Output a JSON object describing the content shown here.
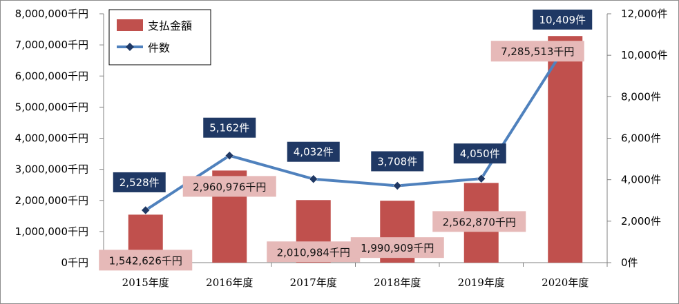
{
  "chart_data": {
    "type": "bar",
    "categories": [
      "2015年度",
      "2016年度",
      "2017年度",
      "2018年度",
      "2019年度",
      "2020年度"
    ],
    "series": [
      {
        "name": "支払金額",
        "kind": "bar",
        "axis": "left",
        "values": [
          1542626,
          2960976,
          2010984,
          1990909,
          2562870,
          7285513
        ],
        "labels": [
          "1,542,626千円",
          "2,960,976千円",
          "2,010,984千円",
          "1,990,909千円",
          "2,562,870千円",
          "7,285,513千円"
        ],
        "color": "#C0504D",
        "label_bg": "#E6B9B8"
      },
      {
        "name": "件数",
        "kind": "line",
        "axis": "right",
        "values": [
          2528,
          5162,
          4032,
          3708,
          4050,
          10409
        ],
        "labels": [
          "2,528件",
          "5,162件",
          "4,032件",
          "3,708件",
          "4,050件",
          "10,409件"
        ],
        "color": "#4F81BD",
        "marker_color": "#1F3864",
        "label_bg": "#1F3864"
      }
    ],
    "y_left": {
      "ylim": [
        0,
        8000000
      ],
      "ticks": [
        "0千円",
        "1,000,000千円",
        "2,000,000千円",
        "3,000,000千円",
        "4,000,000千円",
        "5,000,000千円",
        "6,000,000千円",
        "7,000,000千円",
        "8,000,000千円"
      ]
    },
    "y_right": {
      "ylim": [
        0,
        12000
      ],
      "ticks": [
        "0件",
        "2,000件",
        "4,000件",
        "6,000件",
        "8,000件",
        "10,000件",
        "12,000件"
      ]
    },
    "legend": "top-left",
    "grid": false
  }
}
